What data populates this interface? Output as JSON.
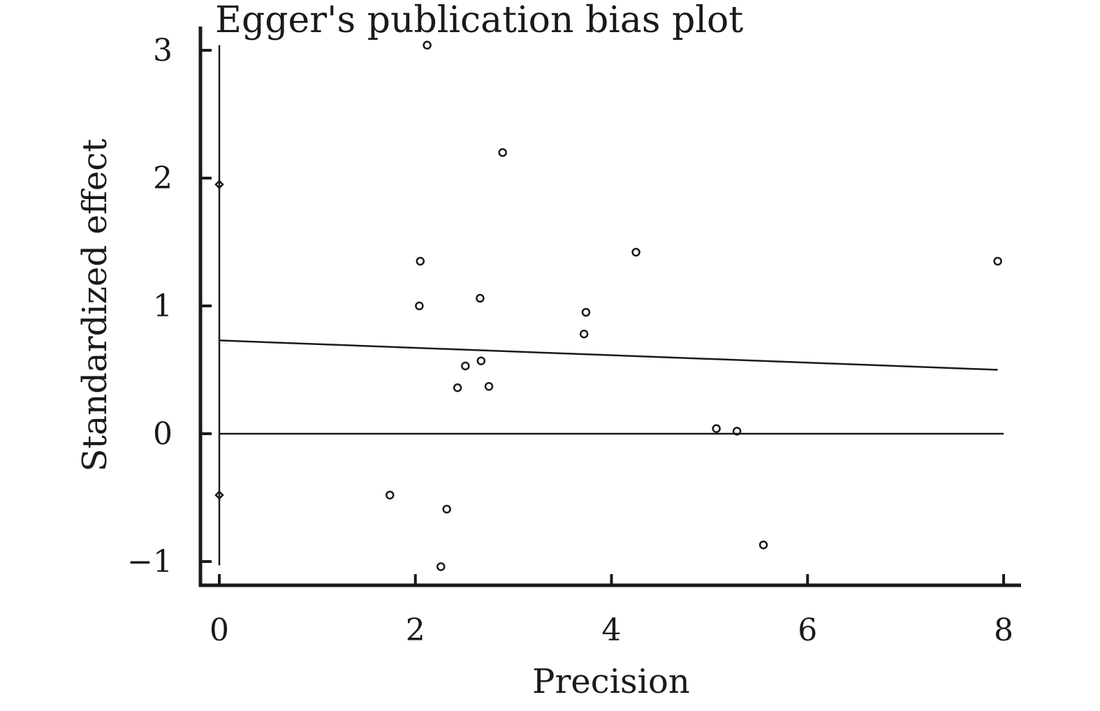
{
  "chart_data": {
    "type": "scatter",
    "title": "Egger's publication bias plot",
    "xlabel": "Precision",
    "ylabel": "Standardized effect",
    "xlim": [
      -0.2,
      8.2
    ],
    "ylim": [
      -1.2,
      3.2
    ],
    "x_ticks": [
      0,
      2,
      4,
      6,
      8
    ],
    "x_tick_labels": [
      "0",
      "2",
      "4",
      "6",
      "8"
    ],
    "y_ticks": [
      -1,
      0,
      1,
      2,
      3
    ],
    "y_tick_labels": [
      "−1",
      "0",
      "1",
      "2",
      "3"
    ],
    "grid": false,
    "points": [
      {
        "x": 2.12,
        "y": 3.04
      },
      {
        "x": 2.89,
        "y": 2.2
      },
      {
        "x": 2.05,
        "y": 1.35
      },
      {
        "x": 4.25,
        "y": 1.42
      },
      {
        "x": 7.94,
        "y": 1.35
      },
      {
        "x": 2.04,
        "y": 1.0
      },
      {
        "x": 2.66,
        "y": 1.06
      },
      {
        "x": 3.74,
        "y": 0.95
      },
      {
        "x": 3.72,
        "y": 0.78
      },
      {
        "x": 2.67,
        "y": 0.57
      },
      {
        "x": 2.51,
        "y": 0.53
      },
      {
        "x": 2.43,
        "y": 0.36
      },
      {
        "x": 2.75,
        "y": 0.37
      },
      {
        "x": 5.07,
        "y": 0.04
      },
      {
        "x": 5.28,
        "y": 0.02
      },
      {
        "x": 1.74,
        "y": -0.48
      },
      {
        "x": 2.32,
        "y": -0.59
      },
      {
        "x": 2.26,
        "y": -1.04
      },
      {
        "x": 5.55,
        "y": -0.87
      }
    ],
    "regression_line": {
      "x": [
        0,
        7.94
      ],
      "y": [
        0.73,
        0.5
      ]
    },
    "reference_line": {
      "y": 0,
      "x": [
        0,
        8
      ]
    },
    "intercept_ci": {
      "x": 0,
      "lower": -0.48,
      "upper": 1.95
    },
    "intercept_ci_extent": {
      "x": 0,
      "lower": -1.03,
      "upper": 3.04
    }
  },
  "colors": {
    "ink": "#1a1a1a",
    "background": "#ffffff"
  }
}
